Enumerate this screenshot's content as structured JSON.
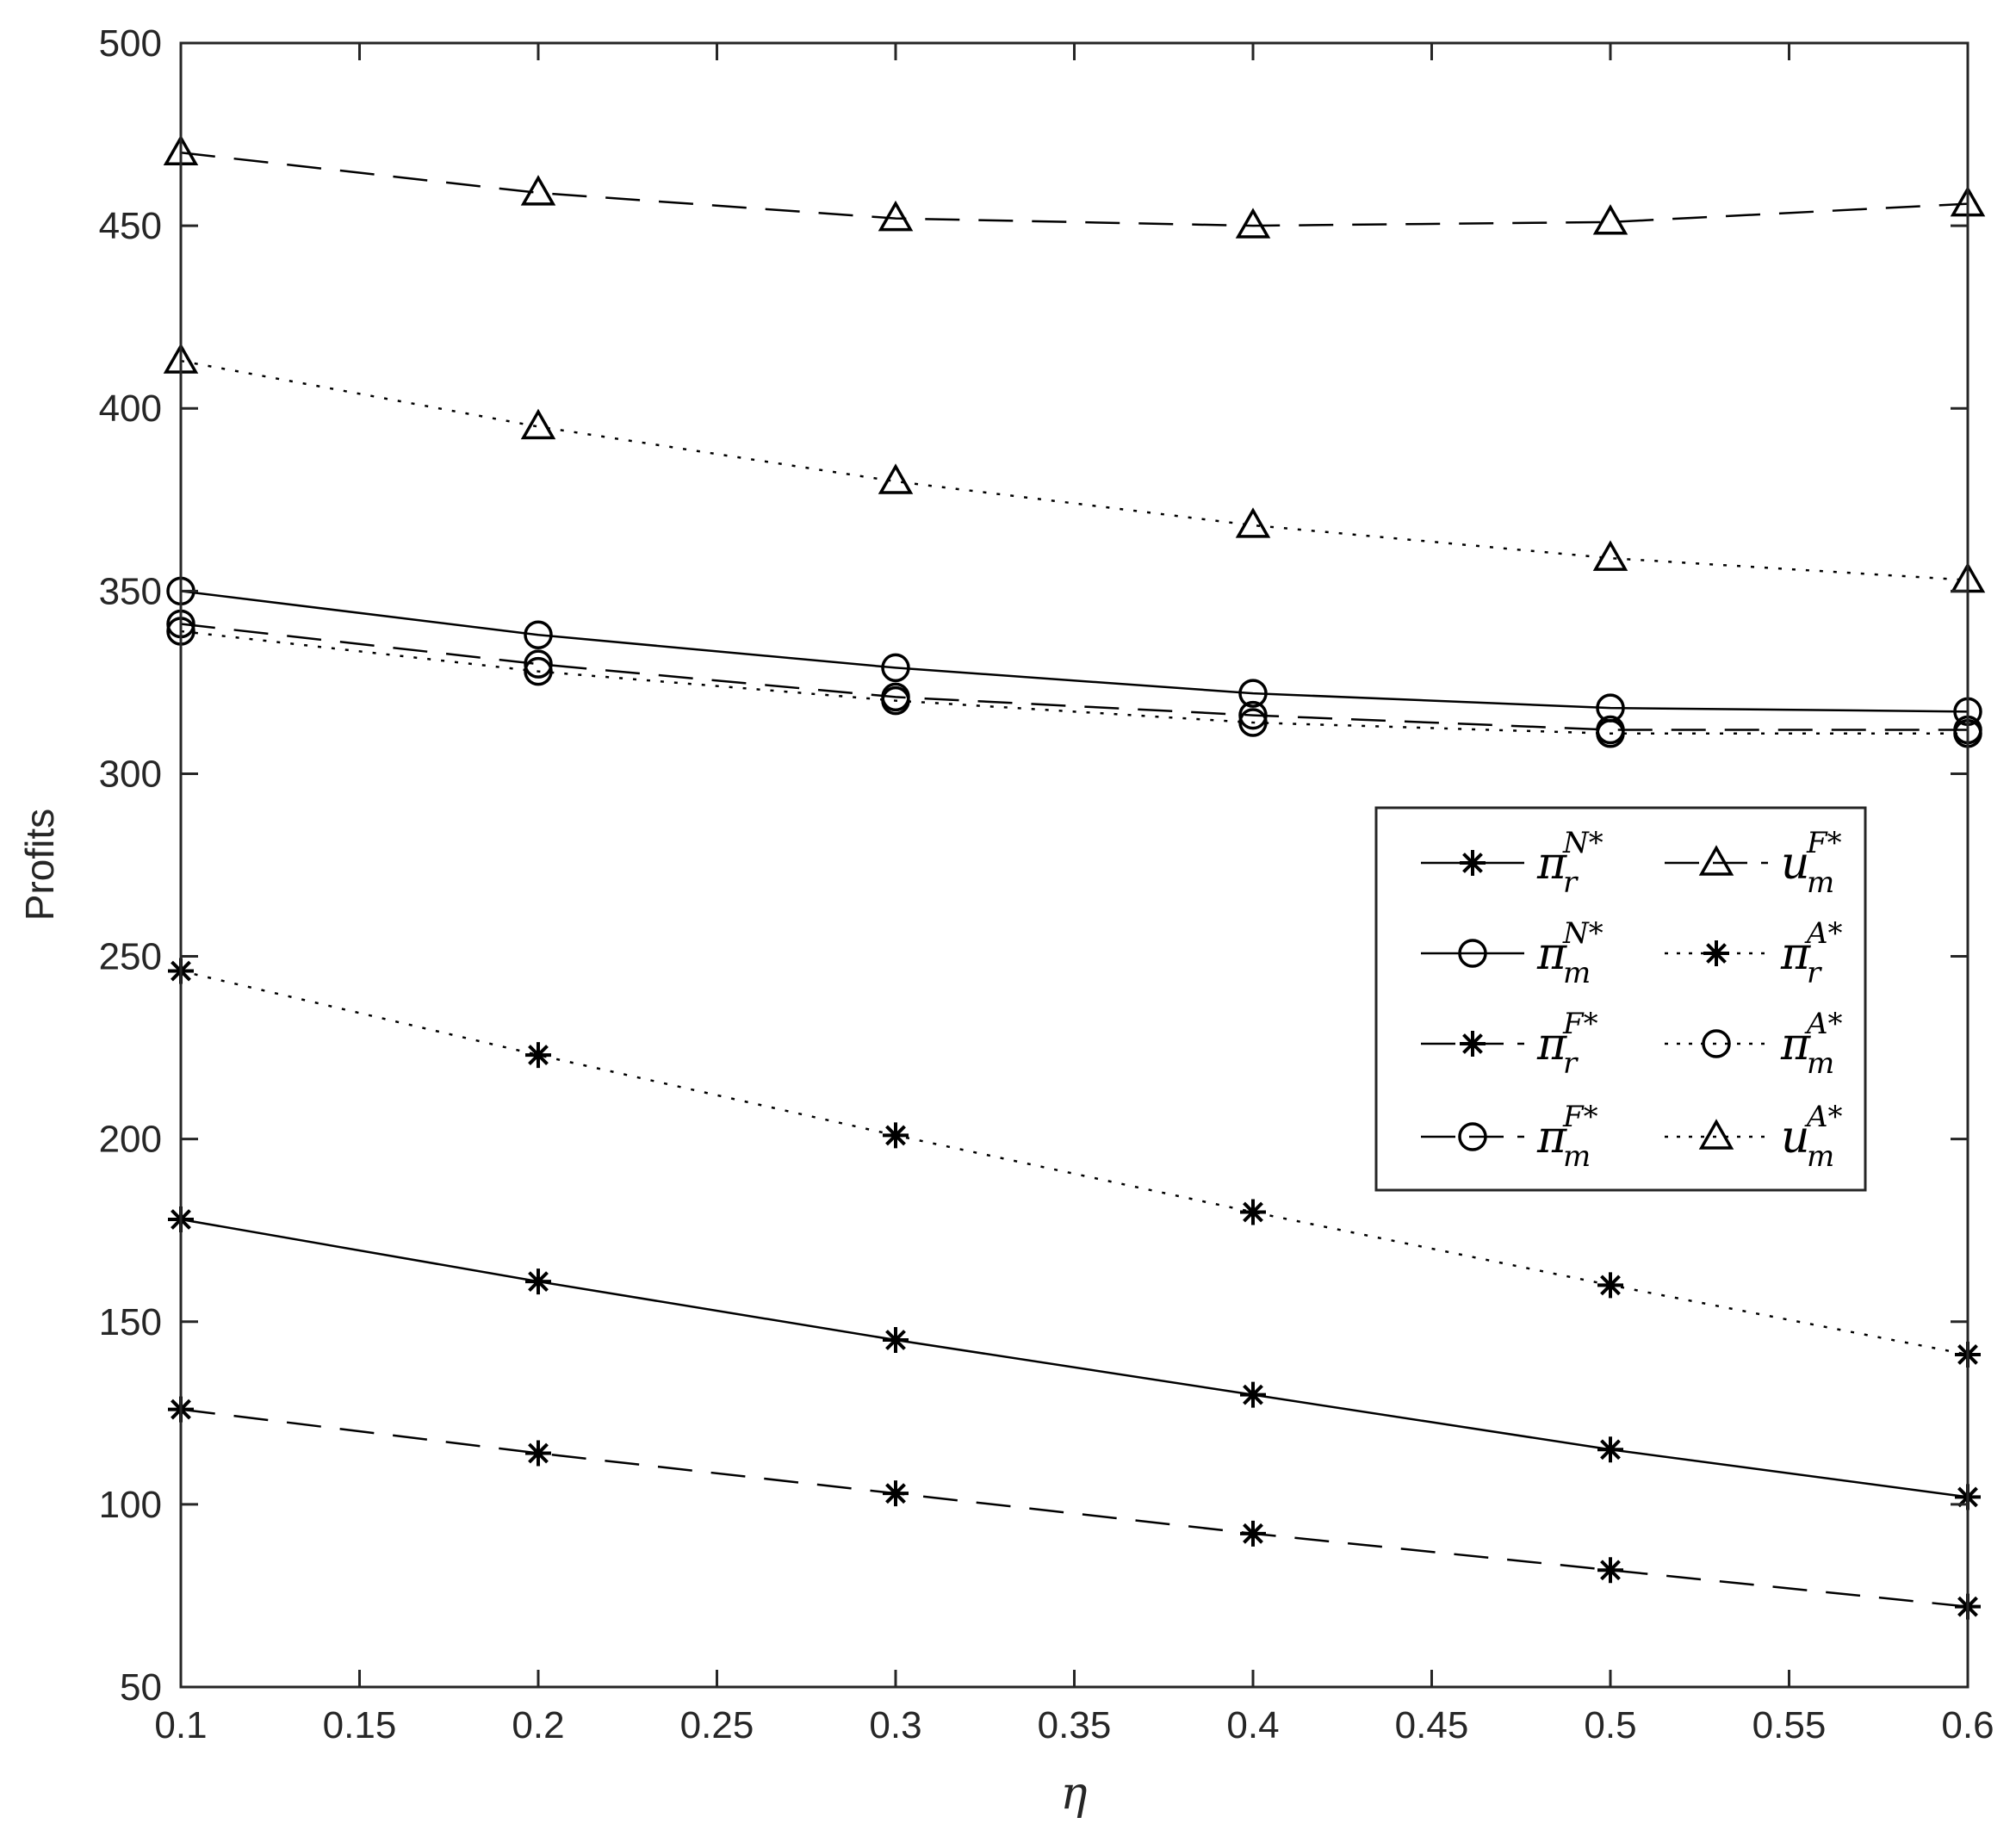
{
  "chart_data": {
    "type": "line",
    "xlabel": "η",
    "ylabel": "Profits",
    "xlim": [
      0.1,
      0.6
    ],
    "ylim": [
      50,
      500
    ],
    "xticks": [
      "0.1",
      "0.15",
      "0.2",
      "0.25",
      "0.3",
      "0.35",
      "0.4",
      "0.45",
      "0.5",
      "0.55",
      "0.6"
    ],
    "yticks": [
      "50",
      "100",
      "150",
      "200",
      "250",
      "300",
      "350",
      "400",
      "450",
      "500"
    ],
    "grid": false,
    "legend_position": "right",
    "x": [
      0.1,
      0.2,
      0.3,
      0.4,
      0.5,
      0.6
    ],
    "series": [
      {
        "sym": "π",
        "sub": "r",
        "sup": "N*",
        "line": "solid",
        "marker": "asterisk",
        "values": [
          178,
          161,
          145,
          130,
          115,
          102
        ]
      },
      {
        "sym": "π",
        "sub": "m",
        "sup": "N*",
        "line": "solid",
        "marker": "circle",
        "values": [
          350,
          338,
          329,
          322,
          318,
          317
        ]
      },
      {
        "sym": "π",
        "sub": "r",
        "sup": "F*",
        "line": "dashed",
        "marker": "asterisk",
        "values": [
          126,
          114,
          103,
          92,
          82,
          72
        ]
      },
      {
        "sym": "π",
        "sub": "m",
        "sup": "F*",
        "line": "dashed",
        "marker": "circle",
        "values": [
          341,
          330,
          321,
          316,
          312,
          312
        ]
      },
      {
        "sym": "u",
        "sub": "m",
        "sup": "F*",
        "line": "dashed",
        "marker": "triangle",
        "values": [
          470,
          459,
          452,
          450,
          451,
          456
        ]
      },
      {
        "sym": "π",
        "sub": "r",
        "sup": "A*",
        "line": "dotted",
        "marker": "asterisk",
        "values": [
          246,
          223,
          201,
          180,
          160,
          141
        ]
      },
      {
        "sym": "π",
        "sub": "m",
        "sup": "A*",
        "line": "dotted",
        "marker": "circle",
        "values": [
          339,
          328,
          320,
          314,
          311,
          311
        ]
      },
      {
        "sym": "u",
        "sub": "m",
        "sup": "A*",
        "line": "dotted",
        "marker": "triangle",
        "values": [
          413,
          395,
          380,
          368,
          359,
          353
        ]
      }
    ]
  }
}
